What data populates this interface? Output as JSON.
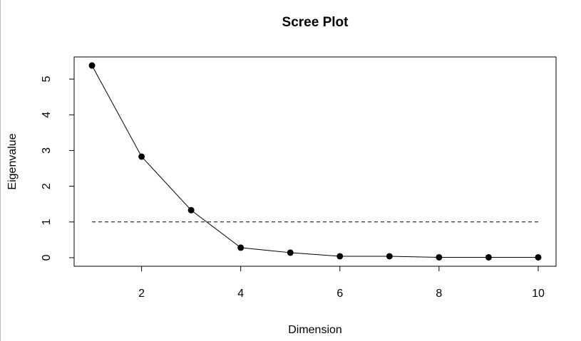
{
  "chart_data": {
    "type": "line",
    "title": "Scree Plot",
    "xlabel": "Dimension",
    "ylabel": "Eigenvalue",
    "x": [
      1,
      2,
      3,
      4,
      5,
      6,
      7,
      8,
      9,
      10
    ],
    "series": [
      {
        "name": "Eigenvalue",
        "color": "#000000",
        "values": [
          5.38,
          2.83,
          1.33,
          0.28,
          0.14,
          0.04,
          0.04,
          0.01,
          0.01,
          0.01
        ]
      }
    ],
    "hline": 1,
    "xlim": [
      0.64,
      10.36
    ],
    "ylim": [
      -0.24,
      5.62
    ],
    "xticks": [
      2,
      4,
      6,
      8,
      10
    ],
    "yticks": [
      0,
      1,
      2,
      3,
      4,
      5
    ]
  }
}
